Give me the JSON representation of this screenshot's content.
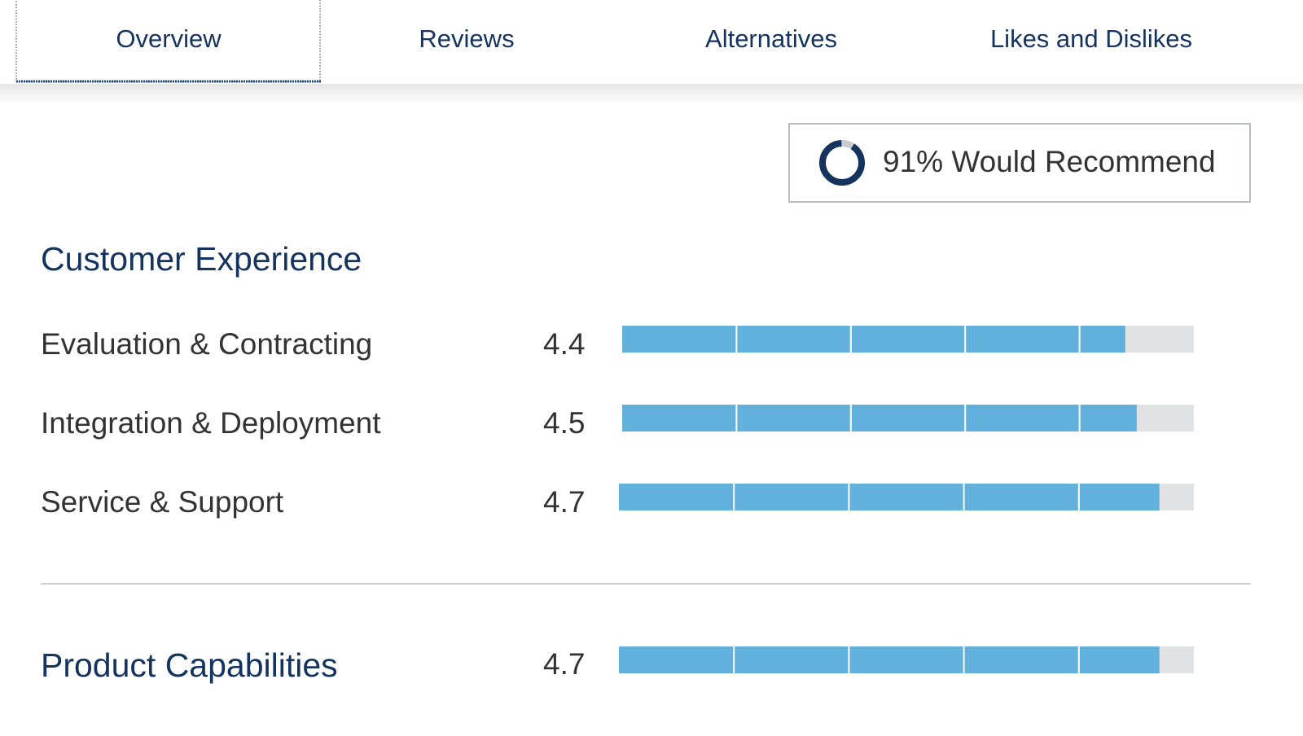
{
  "tabs": [
    "Overview",
    "Reviews",
    "Alternatives",
    "Likes and Dislikes"
  ],
  "recommend": {
    "value": 91,
    "label": "91% Would Recommend"
  },
  "rating_scale": 5,
  "sections": [
    {
      "title": "Customer Experience",
      "rows": [
        {
          "label": "Evaluation & Contracting",
          "value": 4.4
        },
        {
          "label": "Integration & Deployment",
          "value": 4.5
        },
        {
          "label": "Service & Support",
          "value": 4.7
        }
      ]
    },
    {
      "title": "Product Capabilities",
      "value": 4.7
    }
  ]
}
